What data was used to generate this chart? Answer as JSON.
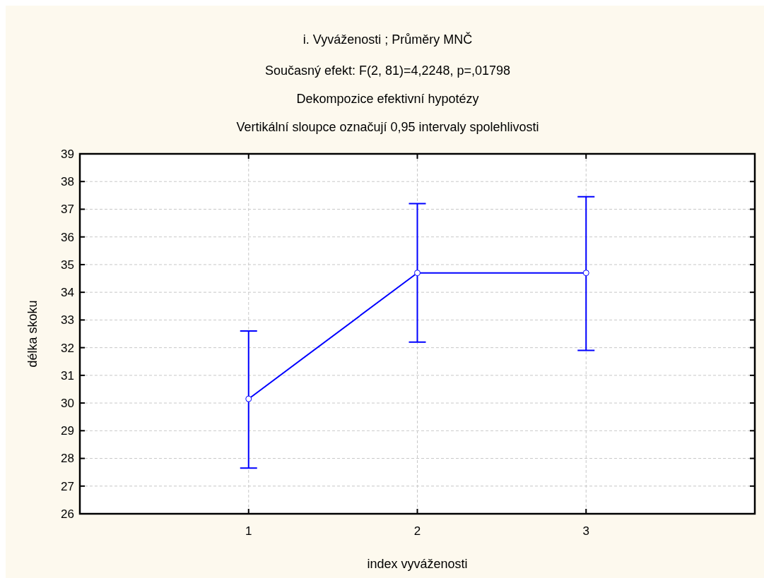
{
  "chart_data": {
    "type": "line",
    "title": "i. Vyváženosti ; Průměry MNČ",
    "subtitle": "Současný efekt: F(2, 81)=4,2248, p=,01798\nDekompozice efektivní hypotézy\nVertikální sloupce označují 0,95 intervaly spolehlivosti",
    "xlabel": "index vyváženosti",
    "ylabel": "délka skoku",
    "x": [
      1,
      2,
      3
    ],
    "xlim": [
      0,
      4
    ],
    "xticks": [
      1,
      2,
      3
    ],
    "ylim": [
      26,
      39
    ],
    "yticks": [
      26,
      27,
      28,
      29,
      30,
      31,
      32,
      33,
      34,
      35,
      36,
      37,
      38,
      39
    ],
    "grid": true,
    "marker": "circle",
    "line_style": "solid",
    "series": [
      {
        "color": "#0000ff",
        "values": [
          30.15,
          34.7,
          34.7
        ],
        "errors": [
          [
            27.65,
            32.6
          ],
          [
            32.2,
            37.2
          ],
          [
            31.9,
            37.45
          ]
        ]
      }
    ]
  }
}
